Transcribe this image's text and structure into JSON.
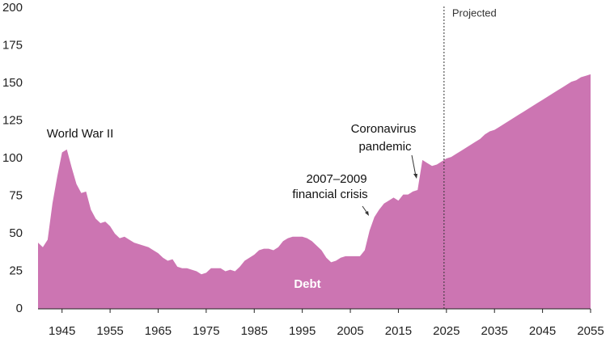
{
  "chart_data": {
    "type": "area",
    "x": [
      1940,
      1941,
      1942,
      1943,
      1944,
      1945,
      1946,
      1947,
      1948,
      1949,
      1950,
      1951,
      1952,
      1953,
      1954,
      1955,
      1956,
      1957,
      1958,
      1959,
      1960,
      1961,
      1962,
      1963,
      1964,
      1965,
      1966,
      1967,
      1968,
      1969,
      1970,
      1971,
      1972,
      1973,
      1974,
      1975,
      1976,
      1977,
      1978,
      1979,
      1980,
      1981,
      1982,
      1983,
      1984,
      1985,
      1986,
      1987,
      1988,
      1989,
      1990,
      1991,
      1992,
      1993,
      1994,
      1995,
      1996,
      1997,
      1998,
      1999,
      2000,
      2001,
      2002,
      2003,
      2004,
      2005,
      2006,
      2007,
      2008,
      2009,
      2010,
      2011,
      2012,
      2013,
      2014,
      2015,
      2016,
      2017,
      2018,
      2019,
      2020,
      2021,
      2022,
      2023,
      2024,
      2025,
      2026,
      2027,
      2028,
      2029,
      2030,
      2031,
      2032,
      2033,
      2034,
      2035,
      2036,
      2037,
      2038,
      2039,
      2040,
      2041,
      2042,
      2043,
      2044,
      2045,
      2046,
      2047,
      2048,
      2049,
      2050,
      2051,
      2052,
      2053,
      2054,
      2055
    ],
    "series": [
      {
        "name": "Debt",
        "color": "#cc75b2",
        "values": [
          44,
          41,
          46,
          70,
          88,
          104,
          106,
          94,
          83,
          77,
          78,
          66,
          60,
          57,
          58,
          55,
          50,
          47,
          48,
          46,
          44,
          43,
          42,
          41,
          39,
          37,
          34,
          32,
          33,
          28,
          27,
          27,
          26,
          25,
          23,
          24,
          27,
          27,
          27,
          25,
          26,
          25,
          28,
          32,
          34,
          36,
          39,
          40,
          40,
          39,
          41,
          45,
          47,
          48,
          48,
          48,
          47,
          45,
          42,
          39,
          34,
          31,
          32,
          34,
          35,
          35,
          35,
          35,
          39,
          52,
          61,
          66,
          70,
          72,
          74,
          72,
          76,
          76,
          78,
          79,
          99,
          97,
          95,
          96,
          98,
          100,
          101,
          103,
          105,
          107,
          109,
          111,
          113,
          116,
          118,
          119,
          121,
          123,
          125,
          127,
          129,
          131,
          133,
          135,
          137,
          139,
          141,
          143,
          145,
          147,
          149,
          151,
          152,
          154,
          155,
          156
        ]
      }
    ],
    "xlim": [
      1940,
      2055
    ],
    "xticks": [
      1945,
      1955,
      1965,
      1975,
      1985,
      1995,
      2005,
      2015,
      2025,
      2035,
      2045,
      2055
    ],
    "ylim": [
      0,
      200
    ],
    "yticks": [
      0,
      25,
      50,
      75,
      100,
      125,
      150,
      175,
      200
    ],
    "projection": {
      "x": 2024.5,
      "label": "Projected"
    },
    "annotations": [
      {
        "lines": [
          "World War II"
        ]
      },
      {
        "lines": [
          "2007–2009",
          "financial crisis"
        ]
      },
      {
        "lines": [
          "Coronavirus",
          "pandemic"
        ]
      }
    ]
  }
}
